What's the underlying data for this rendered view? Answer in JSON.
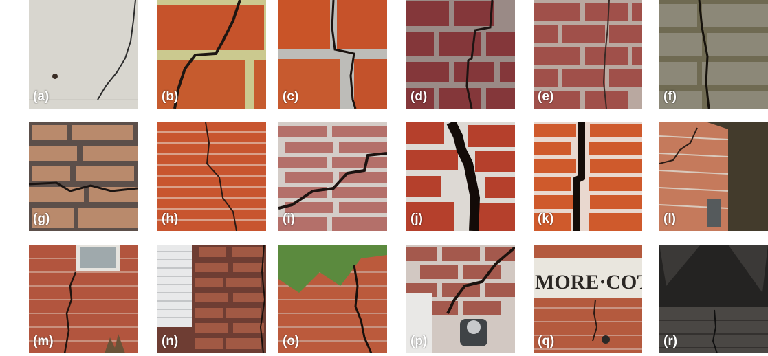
{
  "panels": [
    {
      "label": "(a)"
    },
    {
      "label": "(b)"
    },
    {
      "label": "(c)"
    },
    {
      "label": "(d)"
    },
    {
      "label": "(e)"
    },
    {
      "label": "(f)"
    },
    {
      "label": "(g)"
    },
    {
      "label": "(h)"
    },
    {
      "label": "(i)"
    },
    {
      "label": "(j)"
    },
    {
      "label": "(k)"
    },
    {
      "label": "(l)"
    },
    {
      "label": "(m)"
    },
    {
      "label": "(n)"
    },
    {
      "label": "(o)"
    },
    {
      "label": "(p)"
    },
    {
      "label": "(q)"
    },
    {
      "label": "(r)"
    }
  ],
  "sign_text": "MORE·COT"
}
